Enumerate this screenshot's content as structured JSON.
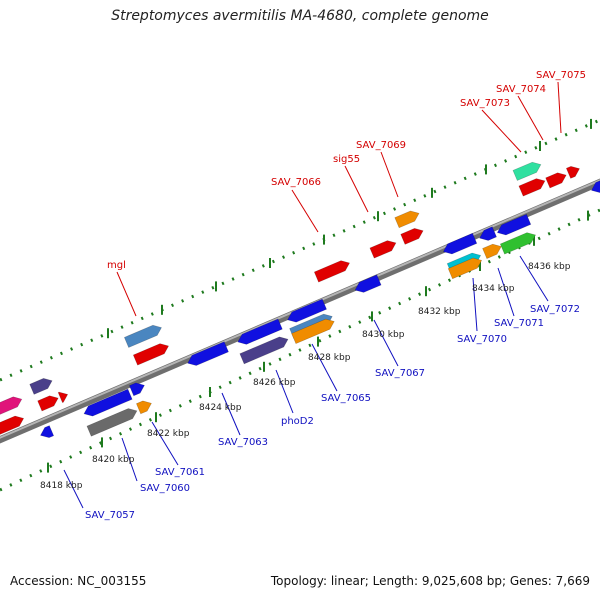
{
  "title": "Streptomyces avermitilis MA-4680, complete genome",
  "footer": {
    "accession": "Accession: NC_003155",
    "summary": "Topology: linear; Length: 9,025,608 bp; Genes: 7,669"
  },
  "ticks": [
    "8418 kbp",
    "8420 kbp",
    "8422 kbp",
    "8424 kbp",
    "8426 kbp",
    "8428 kbp",
    "8430 kbp",
    "8432 kbp",
    "8434 kbp",
    "8436 kbp"
  ],
  "labels_top": [
    "mgl",
    "SAV_7066",
    "sig55",
    "SAV_7069",
    "SAV_7073",
    "SAV_7074",
    "SAV_7075"
  ],
  "labels_bottom": [
    "SAV_7057",
    "SAV_7060",
    "SAV_7061",
    "SAV_7063",
    "phoD2",
    "SAV_7065",
    "SAV_7067",
    "SAV_7070",
    "SAV_7071",
    "SAV_7072"
  ],
  "colors": {
    "backbone": "#8a8a8a",
    "ruler": "#1e7a1e",
    "label_top": "#d40000",
    "label_bottom": "#1010c0"
  }
}
